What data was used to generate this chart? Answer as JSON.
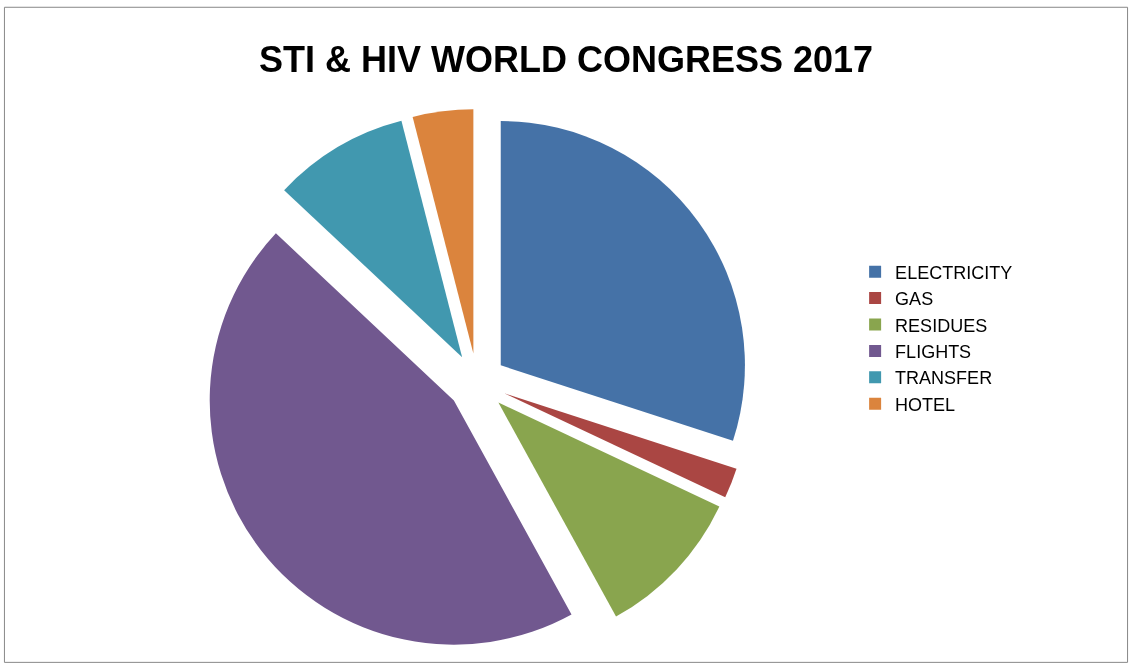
{
  "chart_data": {
    "type": "pie",
    "title": "STI & HIV WORLD CONGRESS 2017",
    "categories": [
      "ELECTRICITY",
      "GAS",
      "RESIDUES",
      "FLIGHTS",
      "TRANSFER",
      "HOTEL"
    ],
    "values": [
      30,
      2,
      10,
      45,
      9,
      4
    ],
    "colors": [
      "#4572a7",
      "#aa4643",
      "#89a54e",
      "#71588f",
      "#4198af",
      "#db843d"
    ],
    "legend": "right"
  }
}
